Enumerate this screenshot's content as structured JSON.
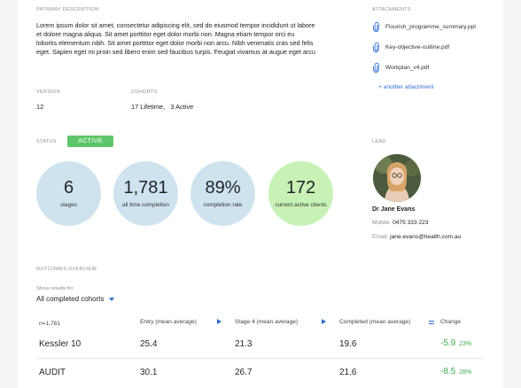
{
  "pathway": {
    "label": "PATHWAY DESCRIPTION",
    "description": "Lorem ipsum dolor sit amet, consectetur adipiscing elit, sed do eiusmod tempor incididunt ut labore et dolore magna aliqua. Sit amet porttitor eget dolor morbi non. Magna etiam tempor orci eu lobortis elementum nibh. Sit amet porttitor eget dolor morbi non arcu. Nibh venenatis cras sed felis eget. Sapien eget mi proin sed libero enim sed faucibus turpis. Feugiat vivamus at augue eget arcu"
  },
  "attachments": {
    "label": "ATTACHMENTS",
    "files": [
      "Flourish_programme_summary.ppt",
      "Key-objective-outline.pdf",
      "Workplan_v4.pdf"
    ],
    "add_link": "+ another attachment"
  },
  "version": {
    "label": "VERSION",
    "value": "12"
  },
  "cohorts": {
    "label": "COHORTS",
    "value": "17 Lifetime,   3 Active"
  },
  "status": {
    "label": "STATUS",
    "value": "ACTIVE"
  },
  "stats": [
    {
      "num": "6",
      "sub": "stages"
    },
    {
      "num": "1,781",
      "sub": "all time completion"
    },
    {
      "num": "89%",
      "sub": "completion rate"
    },
    {
      "num": "172",
      "sub": "current active clients"
    }
  ],
  "lead": {
    "label": "LEAD",
    "name": "Dr Jane Evans",
    "mobile_label": "Mobile:",
    "mobile": "0475 333 223",
    "email_label": "Email:",
    "email": "jane.evans@health.com.au"
  },
  "outcomes": {
    "label": "OUTCOMES OVERVIEW",
    "filter_label": "Show results for",
    "filter_value": "All completed cohorts",
    "columns": {
      "n": "n=1,781",
      "entry": "Entry (mean average)",
      "stage4": "Stage 4 (mean average)",
      "completed": "Completed (mean average)",
      "change": "Change"
    },
    "rows": [
      {
        "name": "Kessler 10",
        "entry": "25.4",
        "stage4": "21.3",
        "completed": "19.6",
        "change": "-5.9",
        "pct": "23%"
      },
      {
        "name": "AUDIT",
        "entry": "30.1",
        "stage4": "26.7",
        "completed": "21.6",
        "change": "-8.5",
        "pct": "28%"
      }
    ]
  },
  "colors": {
    "blue_circle": "#cfe3ef",
    "green_circle": "#c8f2b5",
    "active_badge": "#5ec66a",
    "link": "#2f6fd3",
    "change_green": "#3fae4e"
  }
}
